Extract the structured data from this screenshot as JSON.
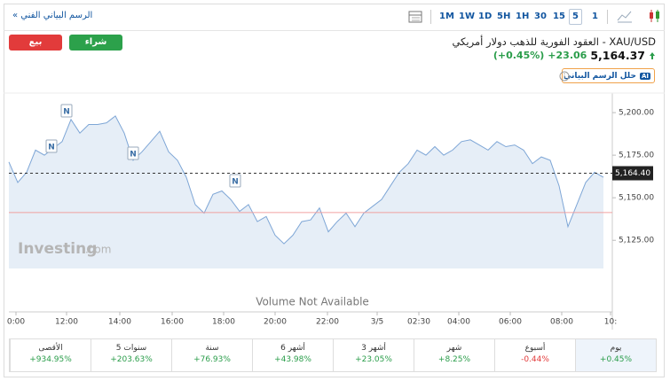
{
  "header": {
    "technical_link": "الرسم البياني الفني »",
    "timeframes": [
      {
        "label": "1M"
      },
      {
        "label": "1W"
      },
      {
        "label": "1D"
      },
      {
        "label": "5H"
      },
      {
        "label": "1H"
      },
      {
        "label": "30"
      },
      {
        "label": "15"
      },
      {
        "label": "5",
        "selected": true
      },
      {
        "label": "1"
      }
    ]
  },
  "actions": {
    "sell": "بيع",
    "buy": "شراء"
  },
  "instrument": {
    "title": "XAU/USD - العقود الفورية للذهب دولار أمريكي",
    "price": "5,164.37",
    "change": "+23.06",
    "change_pct": "(+0.45%)",
    "ai_badge": "AI",
    "ai_button": "حلل الرسم البياني"
  },
  "chart_data": {
    "type": "area",
    "color": "#7ea6d6",
    "fill": "#e6eef7",
    "values": [
      5171,
      5159,
      5165,
      5178,
      5175,
      5179,
      5183,
      5196,
      5188,
      5193,
      5193,
      5194,
      5198,
      5188,
      5172,
      5177,
      5183,
      5189,
      5177,
      5172,
      5162,
      5146,
      5141,
      5152,
      5154,
      5149,
      5142,
      5146,
      5136,
      5139,
      5128,
      5123,
      5128,
      5136,
      5137,
      5144,
      5130,
      5136,
      5141,
      5133,
      5141,
      5145,
      5149,
      5157,
      5165,
      5170,
      5178,
      5175,
      5180,
      5175,
      5178,
      5183,
      5184,
      5181,
      5178,
      5183,
      5180,
      5181,
      5178,
      5170,
      5174,
      5172,
      5157,
      5133,
      5146,
      5159,
      5165,
      5162
    ],
    "xlim": [
      0,
      68
    ],
    "xticks": [
      {
        "value": 0.8,
        "label": "0:00"
      },
      {
        "value": 6.5,
        "label": "12:00"
      },
      {
        "value": 12.5,
        "label": "14:00"
      },
      {
        "value": 18.4,
        "label": "16:00"
      },
      {
        "value": 24.2,
        "label": "18:00"
      },
      {
        "value": 30,
        "label": "20:00"
      },
      {
        "value": 35.9,
        "label": "22:00"
      },
      {
        "value": 41.5,
        "label": "3/5"
      },
      {
        "value": 46.2,
        "label": "02:30"
      },
      {
        "value": 50.7,
        "label": "04:00"
      },
      {
        "value": 56.5,
        "label": "06:00"
      },
      {
        "value": 62.3,
        "label": "08:00"
      },
      {
        "value": 67.8,
        "label": "10:"
      }
    ],
    "ylim": [
      5084,
      5211.5
    ],
    "yticks": [
      {
        "value": 5125,
        "label": "5,125.00"
      },
      {
        "value": 5150,
        "label": "5,150.00"
      },
      {
        "value": 5175,
        "label": "5,175.00"
      },
      {
        "value": 5200,
        "label": "5,200.00"
      }
    ],
    "last_price": {
      "value": 5164.4,
      "label": "5,164.40"
    },
    "previous_close": 5141.31,
    "news_markers": [
      "N",
      "N",
      "N",
      "N"
    ],
    "watermark": "Investing",
    "watermark_suffix": ".com",
    "note": "Volume Not Available"
  },
  "performance": [
    {
      "period": "يوم",
      "change": "+0.45%",
      "selected": true
    },
    {
      "period": "أسبوع",
      "change": "-0.44%"
    },
    {
      "period": "شهر",
      "change": "+8.25%"
    },
    {
      "period": "3 أشهر",
      "change": "+23.05%"
    },
    {
      "period": "6 أشهر",
      "change": "+43.98%"
    },
    {
      "period": "سنة",
      "change": "+76.93%"
    },
    {
      "period": "5 سنوات",
      "change": "+203.63%"
    },
    {
      "period": "الأقصى",
      "change": "+934.95%"
    }
  ]
}
